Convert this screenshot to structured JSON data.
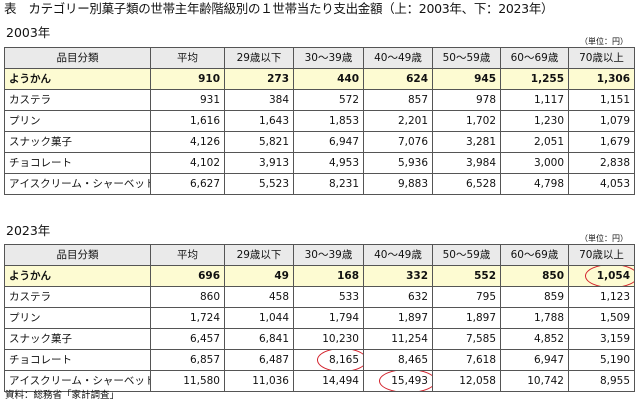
{
  "title": "表　カテゴリー別菓子類の世帯主年齢階級別の１世帯当たり支出金額（上：2003年、下：2023年）",
  "columns": [
    "品目分類",
    "平均",
    "29歳以下",
    "30～39歳",
    "40～49歳",
    "50～59歳",
    "60～69歳",
    "70歳以上"
  ],
  "tables": [
    {
      "year_label": "2003年",
      "unit": "（単位：円）",
      "rows": [
        {
          "cat": "ようかん",
          "v": [
            "910",
            "273",
            "440",
            "624",
            "945",
            "1,255",
            "1,306"
          ]
        },
        {
          "cat": "カステラ",
          "v": [
            "931",
            "384",
            "572",
            "857",
            "978",
            "1,117",
            "1,151"
          ]
        },
        {
          "cat": "プリン",
          "v": [
            "1,616",
            "1,643",
            "1,853",
            "2,201",
            "1,702",
            "1,230",
            "1,079"
          ]
        },
        {
          "cat": "スナック菓子",
          "v": [
            "4,126",
            "5,821",
            "6,947",
            "7,076",
            "3,281",
            "2,051",
            "1,679"
          ]
        },
        {
          "cat": "チョコレート",
          "v": [
            "4,102",
            "3,913",
            "4,953",
            "5,936",
            "3,984",
            "3,000",
            "2,838"
          ]
        },
        {
          "cat": "アイスクリーム・シャーベット",
          "v": [
            "6,627",
            "5,523",
            "8,231",
            "9,883",
            "6,528",
            "4,798",
            "4,053"
          ]
        }
      ]
    },
    {
      "year_label": "2023年",
      "unit": "（単位：円）",
      "rows": [
        {
          "cat": "ようかん",
          "v": [
            "696",
            "49",
            "168",
            "332",
            "552",
            "850",
            "1,054"
          ]
        },
        {
          "cat": "カステラ",
          "v": [
            "860",
            "458",
            "533",
            "632",
            "795",
            "859",
            "1,123"
          ]
        },
        {
          "cat": "プリン",
          "v": [
            "1,724",
            "1,044",
            "1,794",
            "1,897",
            "1,897",
            "1,788",
            "1,509"
          ]
        },
        {
          "cat": "スナック菓子",
          "v": [
            "6,457",
            "6,841",
            "10,230",
            "11,254",
            "7,585",
            "4,852",
            "3,159"
          ]
        },
        {
          "cat": "チョコレート",
          "v": [
            "6,857",
            "6,487",
            "8,165",
            "8,465",
            "7,618",
            "6,947",
            "5,190"
          ]
        },
        {
          "cat": "アイスクリーム・シャーベット",
          "v": [
            "11,580",
            "11,036",
            "14,494",
            "15,493",
            "12,058",
            "10,742",
            "8,955"
          ]
        }
      ]
    }
  ],
  "source": "資料：総務省「家計調査」",
  "highlight_color": "#fdfbd2",
  "circle_color": "#d3232d"
}
